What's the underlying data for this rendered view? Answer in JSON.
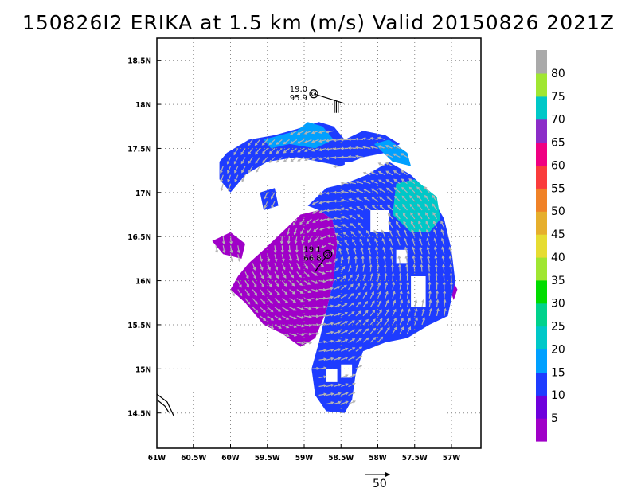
{
  "title": "150826I2 ERIKA at 1.5 km (m/s) Valid 20150826  2021Z",
  "chart_data": {
    "type": "heatmap",
    "title": "150826I2 ERIKA at 1.5 km (m/s) Valid 20150826  2021Z",
    "xlim": [
      -61.0,
      -56.6
    ],
    "ylim": [
      14.1,
      18.75
    ],
    "x_ticks": [
      {
        "value": -61.0,
        "label": "61W"
      },
      {
        "value": -60.5,
        "label": "60.5W"
      },
      {
        "value": -60.0,
        "label": "60W"
      },
      {
        "value": -59.5,
        "label": "59.5W"
      },
      {
        "value": -59.0,
        "label": "59W"
      },
      {
        "value": -58.5,
        "label": "58.5W"
      },
      {
        "value": -58.0,
        "label": "58W"
      },
      {
        "value": -57.5,
        "label": "57.5W"
      },
      {
        "value": -57.0,
        "label": "57W"
      }
    ],
    "y_ticks": [
      {
        "value": 14.5,
        "label": "14.5N"
      },
      {
        "value": 15.0,
        "label": "15N"
      },
      {
        "value": 15.5,
        "label": "15.5N"
      },
      {
        "value": 16.0,
        "label": "16N"
      },
      {
        "value": 16.5,
        "label": "16.5N"
      },
      {
        "value": 17.0,
        "label": "17N"
      },
      {
        "value": 17.5,
        "label": "17.5N"
      },
      {
        "value": 18.0,
        "label": "18N"
      },
      {
        "value": 18.5,
        "label": "18.5N"
      }
    ],
    "grid": true,
    "colorbar": {
      "labels": [
        "5",
        "10",
        "15",
        "20",
        "25",
        "30",
        "35",
        "40",
        "45",
        "50",
        "55",
        "60",
        "65",
        "70",
        "75",
        "80"
      ],
      "colors": [
        "#a000c8",
        "#6e00dc",
        "#1e3cff",
        "#00a0ff",
        "#00c8c8",
        "#00d28c",
        "#00dc00",
        "#a0e632",
        "#e6dc32",
        "#e6af2d",
        "#f08228",
        "#fa3c3c",
        "#f00082",
        "#8c2dc8",
        "#00c8c8",
        "#a0e632",
        "#aaaaaa"
      ]
    },
    "field_colors": {
      "5": "#a000c8",
      "10": "#1e3cff",
      "15": "#00a0ff",
      "20": "#00c8c8"
    },
    "regions": [
      {
        "name": "purple-core",
        "level": "5",
        "outline": [
          [
            -59.9,
            16.05
          ],
          [
            -59.75,
            16.2
          ],
          [
            -59.55,
            16.35
          ],
          [
            -59.3,
            16.55
          ],
          [
            -59.05,
            16.75
          ],
          [
            -58.8,
            16.8
          ],
          [
            -58.62,
            16.7
          ],
          [
            -58.55,
            16.45
          ],
          [
            -58.6,
            16.0
          ],
          [
            -58.7,
            15.65
          ],
          [
            -58.85,
            15.35
          ],
          [
            -59.05,
            15.25
          ],
          [
            -59.3,
            15.4
          ],
          [
            -59.55,
            15.5
          ],
          [
            -59.8,
            15.75
          ],
          [
            -60.0,
            15.9
          ]
        ]
      },
      {
        "name": "purple-west-arm",
        "level": "5",
        "outline": [
          [
            -60.25,
            16.45
          ],
          [
            -60.0,
            16.55
          ],
          [
            -59.8,
            16.42
          ],
          [
            -59.85,
            16.25
          ],
          [
            -60.1,
            16.3
          ]
        ]
      },
      {
        "name": "purple-east-blob",
        "level": "5",
        "outline": [
          [
            -56.98,
            16.0
          ],
          [
            -56.92,
            15.9
          ],
          [
            -56.97,
            15.78
          ],
          [
            -57.02,
            15.9
          ]
        ]
      },
      {
        "name": "blue-main",
        "level": "10",
        "outline": [
          [
            -58.95,
            16.85
          ],
          [
            -58.7,
            17.05
          ],
          [
            -58.45,
            17.1
          ],
          [
            -58.15,
            17.2
          ],
          [
            -57.85,
            17.35
          ],
          [
            -57.55,
            17.2
          ],
          [
            -57.3,
            17.0
          ],
          [
            -57.1,
            16.7
          ],
          [
            -57.0,
            16.35
          ],
          [
            -56.95,
            16.0
          ],
          [
            -57.05,
            15.6
          ],
          [
            -57.3,
            15.5
          ],
          [
            -57.6,
            15.35
          ],
          [
            -57.9,
            15.3
          ],
          [
            -58.2,
            15.2
          ],
          [
            -58.3,
            14.95
          ],
          [
            -58.35,
            14.65
          ],
          [
            -58.45,
            14.5
          ],
          [
            -58.7,
            14.52
          ],
          [
            -58.85,
            14.7
          ],
          [
            -58.9,
            15.0
          ],
          [
            -58.8,
            15.3
          ],
          [
            -58.7,
            15.65
          ],
          [
            -58.6,
            16.0
          ],
          [
            -58.55,
            16.45
          ],
          [
            -58.62,
            16.7
          ],
          [
            -58.8,
            16.8
          ]
        ]
      },
      {
        "name": "blue-north-ring",
        "level": "10",
        "outline": [
          [
            -60.05,
            17.45
          ],
          [
            -59.75,
            17.6
          ],
          [
            -59.4,
            17.65
          ],
          [
            -59.1,
            17.72
          ],
          [
            -58.8,
            17.8
          ],
          [
            -58.6,
            17.75
          ],
          [
            -58.45,
            17.6
          ],
          [
            -58.2,
            17.7
          ],
          [
            -57.9,
            17.65
          ],
          [
            -57.7,
            17.55
          ],
          [
            -57.9,
            17.45
          ],
          [
            -58.2,
            17.4
          ],
          [
            -58.5,
            17.3
          ],
          [
            -58.8,
            17.35
          ],
          [
            -59.1,
            17.4
          ],
          [
            -59.5,
            17.35
          ],
          [
            -59.8,
            17.2
          ],
          [
            -60.0,
            17.0
          ],
          [
            -60.15,
            17.15
          ],
          [
            -60.15,
            17.35
          ]
        ]
      },
      {
        "name": "blue-west-patch",
        "level": "10",
        "outline": [
          [
            -59.6,
            17.0
          ],
          [
            -59.4,
            17.05
          ],
          [
            -59.35,
            16.85
          ],
          [
            -59.55,
            16.8
          ]
        ]
      },
      {
        "name": "light-blue-north",
        "level": "15",
        "outline": [
          [
            -59.55,
            17.6
          ],
          [
            -59.1,
            17.7
          ],
          [
            -58.95,
            17.8
          ],
          [
            -58.75,
            17.75
          ],
          [
            -58.6,
            17.6
          ],
          [
            -58.85,
            17.5
          ],
          [
            -59.2,
            17.55
          ],
          [
            -59.45,
            17.5
          ]
        ]
      },
      {
        "name": "light-blue-northeast",
        "level": "15",
        "outline": [
          [
            -58.05,
            17.55
          ],
          [
            -57.85,
            17.6
          ],
          [
            -57.6,
            17.45
          ],
          [
            -57.55,
            17.3
          ],
          [
            -57.8,
            17.35
          ]
        ]
      },
      {
        "name": "teal-east",
        "level": "20",
        "outline": [
          [
            -57.75,
            17.1
          ],
          [
            -57.5,
            17.15
          ],
          [
            -57.2,
            16.95
          ],
          [
            -57.15,
            16.7
          ],
          [
            -57.3,
            16.55
          ],
          [
            -57.55,
            16.55
          ],
          [
            -57.8,
            16.75
          ]
        ]
      }
    ],
    "holes": [
      {
        "outline": [
          [
            -58.1,
            16.8
          ],
          [
            -57.85,
            16.8
          ],
          [
            -57.85,
            16.55
          ],
          [
            -58.1,
            16.55
          ]
        ]
      },
      {
        "outline": [
          [
            -57.75,
            16.35
          ],
          [
            -57.6,
            16.35
          ],
          [
            -57.6,
            16.2
          ],
          [
            -57.75,
            16.2
          ]
        ]
      },
      {
        "outline": [
          [
            -57.55,
            16.05
          ],
          [
            -57.35,
            16.05
          ],
          [
            -57.35,
            15.7
          ],
          [
            -57.55,
            15.7
          ]
        ]
      },
      {
        "outline": [
          [
            -58.5,
            15.05
          ],
          [
            -58.35,
            15.05
          ],
          [
            -58.35,
            14.9
          ],
          [
            -58.5,
            14.9
          ]
        ]
      },
      {
        "outline": [
          [
            -58.7,
            15.0
          ],
          [
            -58.55,
            15.0
          ],
          [
            -58.55,
            14.85
          ],
          [
            -58.7,
            14.85
          ]
        ]
      },
      {
        "outline": [
          [
            -58.45,
            17.35
          ],
          [
            -58.2,
            17.35
          ],
          [
            -58.2,
            17.2
          ],
          [
            -58.45,
            17.2
          ]
        ]
      }
    ],
    "wind_vectors": {
      "description": "gray wind arrows, spacing 0.1 deg, length ~ speed",
      "reference_speed": 50,
      "reference_label": "50"
    },
    "centers": [
      {
        "lon": -58.87,
        "lat": 18.12,
        "labels": [
          "19.0",
          "95.9"
        ]
      },
      {
        "lon": -58.68,
        "lat": 16.3,
        "labels": [
          "19.1",
          "66.8"
        ]
      }
    ]
  }
}
